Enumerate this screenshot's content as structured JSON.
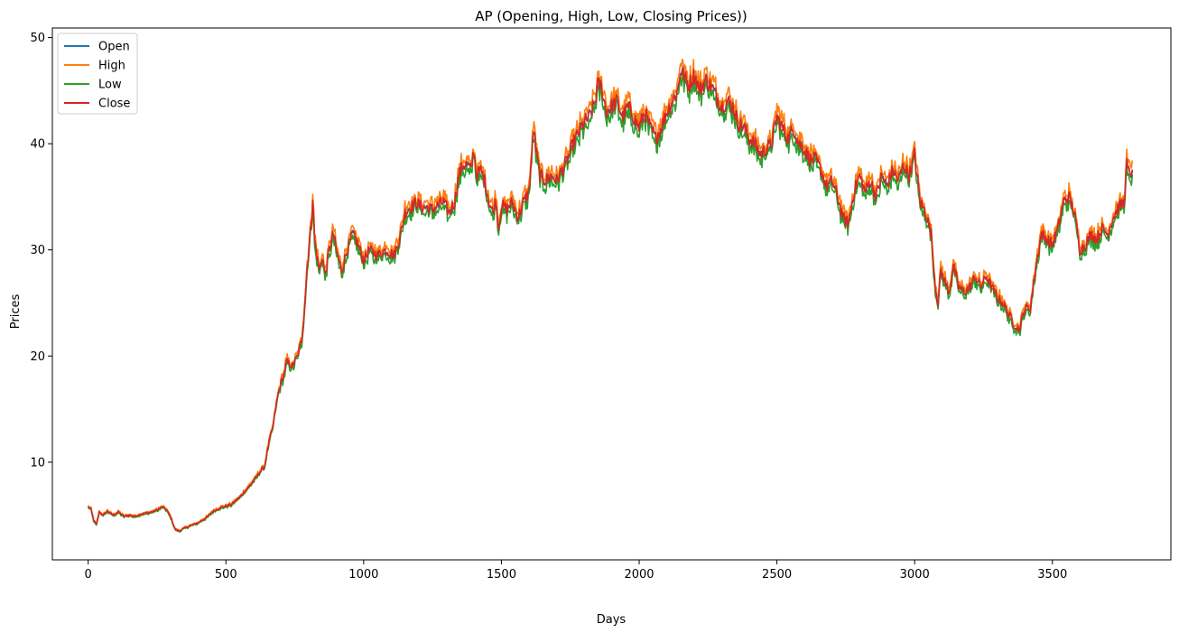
{
  "chart_data": {
    "type": "line",
    "title": "AP (Opening, High, Low, Closing Prices))",
    "xlabel": "Days",
    "ylabel": "Prices",
    "xlim": [
      -130,
      3930
    ],
    "ylim": [
      0.8,
      50.9
    ],
    "xticks": [
      0,
      500,
      1000,
      1500,
      2000,
      2500,
      3000,
      3500
    ],
    "yticks": [
      10,
      20,
      30,
      40,
      50
    ],
    "grid": false,
    "legend_position": "top-left",
    "colors": {
      "Open": "#1f77b4",
      "High": "#ff7f0e",
      "Low": "#2ca02c",
      "Close": "#d62728"
    },
    "close_anchor_points": [
      [
        0,
        5.8
      ],
      [
        10,
        5.6
      ],
      [
        20,
        4.5
      ],
      [
        30,
        4.1
      ],
      [
        40,
        5.3
      ],
      [
        55,
        5.0
      ],
      [
        70,
        5.4
      ],
      [
        90,
        5.0
      ],
      [
        110,
        5.3
      ],
      [
        130,
        4.9
      ],
      [
        150,
        5.0
      ],
      [
        170,
        4.9
      ],
      [
        190,
        5.1
      ],
      [
        210,
        5.2
      ],
      [
        230,
        5.3
      ],
      [
        250,
        5.5
      ],
      [
        270,
        5.8
      ],
      [
        285,
        5.5
      ],
      [
        300,
        4.8
      ],
      [
        315,
        3.7
      ],
      [
        330,
        3.5
      ],
      [
        350,
        3.8
      ],
      [
        370,
        4.0
      ],
      [
        400,
        4.3
      ],
      [
        430,
        4.8
      ],
      [
        450,
        5.3
      ],
      [
        470,
        5.6
      ],
      [
        490,
        5.8
      ],
      [
        520,
        6.0
      ],
      [
        550,
        6.7
      ],
      [
        570,
        7.3
      ],
      [
        590,
        7.9
      ],
      [
        610,
        8.6
      ],
      [
        630,
        9.3
      ],
      [
        640,
        9.6
      ],
      [
        650,
        11.0
      ],
      [
        660,
        12.3
      ],
      [
        670,
        13.2
      ],
      [
        680,
        15.0
      ],
      [
        690,
        16.5
      ],
      [
        700,
        17.5
      ],
      [
        710,
        18.2
      ],
      [
        720,
        19.5
      ],
      [
        740,
        19.0
      ],
      [
        760,
        20.0
      ],
      [
        775,
        21.5
      ],
      [
        785,
        24.5
      ],
      [
        795,
        28.5
      ],
      [
        810,
        32.5
      ],
      [
        815,
        35.0
      ],
      [
        822,
        31.0
      ],
      [
        830,
        29.5
      ],
      [
        840,
        28.0
      ],
      [
        850,
        29.5
      ],
      [
        860,
        27.5
      ],
      [
        875,
        30.0
      ],
      [
        890,
        31.5
      ],
      [
        905,
        29.5
      ],
      [
        920,
        28.0
      ],
      [
        940,
        30.0
      ],
      [
        960,
        31.5
      ],
      [
        980,
        30.5
      ],
      [
        1000,
        29.0
      ],
      [
        1020,
        30.0
      ],
      [
        1050,
        29.5
      ],
      [
        1080,
        30.0
      ],
      [
        1110,
        29.5
      ],
      [
        1130,
        31.0
      ],
      [
        1150,
        33.5
      ],
      [
        1170,
        34.0
      ],
      [
        1190,
        34.5
      ],
      [
        1210,
        34.0
      ],
      [
        1230,
        34.0
      ],
      [
        1250,
        33.8
      ],
      [
        1270,
        34.2
      ],
      [
        1290,
        34.5
      ],
      [
        1310,
        33.5
      ],
      [
        1330,
        34.5
      ],
      [
        1345,
        37.0
      ],
      [
        1360,
        38.0
      ],
      [
        1375,
        38.0
      ],
      [
        1390,
        37.5
      ],
      [
        1400,
        39.5
      ],
      [
        1410,
        37.0
      ],
      [
        1425,
        37.5
      ],
      [
        1440,
        36.5
      ],
      [
        1455,
        34.5
      ],
      [
        1470,
        33.5
      ],
      [
        1480,
        34.8
      ],
      [
        1490,
        32.0
      ],
      [
        1500,
        34.2
      ],
      [
        1520,
        33.8
      ],
      [
        1540,
        34.5
      ],
      [
        1560,
        33.0
      ],
      [
        1580,
        34.5
      ],
      [
        1600,
        35.5
      ],
      [
        1610,
        39.0
      ],
      [
        1618,
        41.5
      ],
      [
        1625,
        39.5
      ],
      [
        1640,
        37.0
      ],
      [
        1660,
        36.5
      ],
      [
        1680,
        37.0
      ],
      [
        1700,
        36.5
      ],
      [
        1720,
        37.5
      ],
      [
        1740,
        38.5
      ],
      [
        1760,
        40.0
      ],
      [
        1780,
        41.0
      ],
      [
        1800,
        42.0
      ],
      [
        1820,
        42.5
      ],
      [
        1840,
        44.0
      ],
      [
        1850,
        45.5
      ],
      [
        1860,
        45.5
      ],
      [
        1870,
        44.5
      ],
      [
        1880,
        43.0
      ],
      [
        1900,
        43.5
      ],
      [
        1920,
        44.0
      ],
      [
        1940,
        42.5
      ],
      [
        1960,
        43.5
      ],
      [
        1980,
        42.5
      ],
      [
        2000,
        41.5
      ],
      [
        2020,
        43.0
      ],
      [
        2040,
        41.5
      ],
      [
        2060,
        40.5
      ],
      [
        2080,
        41.5
      ],
      [
        2100,
        43.0
      ],
      [
        2120,
        44.0
      ],
      [
        2140,
        45.0
      ],
      [
        2150,
        47.0
      ],
      [
        2160,
        46.5
      ],
      [
        2180,
        45.5
      ],
      [
        2200,
        46.5
      ],
      [
        2220,
        45.0
      ],
      [
        2240,
        46.0
      ],
      [
        2260,
        45.5
      ],
      [
        2280,
        44.5
      ],
      [
        2300,
        43.5
      ],
      [
        2320,
        44.0
      ],
      [
        2340,
        43.5
      ],
      [
        2360,
        42.0
      ],
      [
        2380,
        41.5
      ],
      [
        2400,
        40.5
      ],
      [
        2420,
        40.0
      ],
      [
        2440,
        39.0
      ],
      [
        2460,
        39.5
      ],
      [
        2480,
        40.0
      ],
      [
        2500,
        42.5
      ],
      [
        2520,
        41.5
      ],
      [
        2540,
        40.5
      ],
      [
        2560,
        41.5
      ],
      [
        2580,
        40.0
      ],
      [
        2600,
        39.5
      ],
      [
        2620,
        38.5
      ],
      [
        2640,
        38.5
      ],
      [
        2660,
        37.5
      ],
      [
        2680,
        36.0
      ],
      [
        2700,
        36.5
      ],
      [
        2720,
        35.0
      ],
      [
        2740,
        33.0
      ],
      [
        2760,
        32.5
      ],
      [
        2780,
        35.5
      ],
      [
        2800,
        37.0
      ],
      [
        2820,
        35.5
      ],
      [
        2840,
        36.5
      ],
      [
        2860,
        35.0
      ],
      [
        2880,
        37.0
      ],
      [
        2900,
        36.0
      ],
      [
        2920,
        37.5
      ],
      [
        2940,
        36.5
      ],
      [
        2960,
        38.0
      ],
      [
        2980,
        37.0
      ],
      [
        3000,
        39.0
      ],
      [
        3020,
        34.5
      ],
      [
        3040,
        33.5
      ],
      [
        3060,
        31.5
      ],
      [
        3075,
        26.5
      ],
      [
        3085,
        25.0
      ],
      [
        3095,
        28.0
      ],
      [
        3110,
        27.0
      ],
      [
        3125,
        26.0
      ],
      [
        3140,
        28.5
      ],
      [
        3160,
        26.5
      ],
      [
        3180,
        26.0
      ],
      [
        3200,
        26.5
      ],
      [
        3220,
        27.5
      ],
      [
        3240,
        26.5
      ],
      [
        3260,
        27.5
      ],
      [
        3280,
        26.5
      ],
      [
        3300,
        25.5
      ],
      [
        3320,
        25.0
      ],
      [
        3340,
        24.0
      ],
      [
        3360,
        23.0
      ],
      [
        3380,
        22.5
      ],
      [
        3400,
        24.5
      ],
      [
        3420,
        24.5
      ],
      [
        3440,
        28.5
      ],
      [
        3460,
        31.5
      ],
      [
        3480,
        31.0
      ],
      [
        3500,
        30.5
      ],
      [
        3520,
        32.0
      ],
      [
        3540,
        34.5
      ],
      [
        3560,
        35.0
      ],
      [
        3580,
        33.5
      ],
      [
        3600,
        30.0
      ],
      [
        3620,
        30.5
      ],
      [
        3640,
        31.5
      ],
      [
        3660,
        31.0
      ],
      [
        3680,
        32.0
      ],
      [
        3700,
        31.5
      ],
      [
        3720,
        33.0
      ],
      [
        3740,
        34.0
      ],
      [
        3760,
        34.5
      ],
      [
        3770,
        38.0
      ],
      [
        3780,
        37.0
      ],
      [
        3790,
        37.5
      ]
    ],
    "series": [
      {
        "name": "Open"
      },
      {
        "name": "High"
      },
      {
        "name": "Low"
      },
      {
        "name": "Close"
      }
    ]
  }
}
